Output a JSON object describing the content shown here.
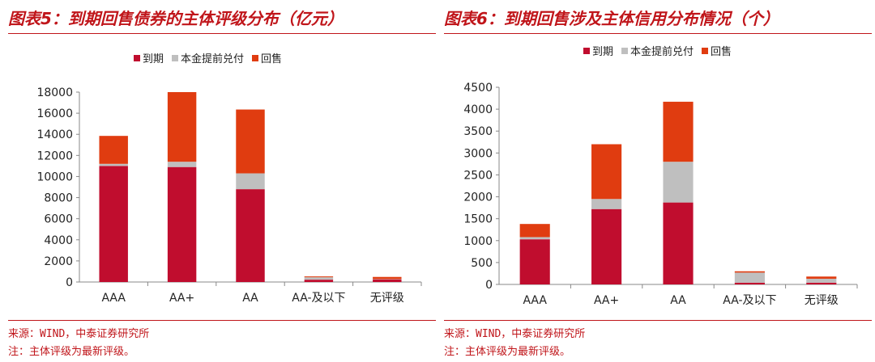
{
  "colors": {
    "accent": "#c0151a",
    "due": "#c00d2e",
    "principal": "#bfbfbf",
    "putback": "#e03c10"
  },
  "left": {
    "title": "图表5：到期回售债券的主体评级分布（亿元）",
    "source": "来源：WIND，中泰证券研究所",
    "note": "注：主体评级为最新评级。",
    "chart_data": {
      "type": "bar",
      "stacked": true,
      "categories": [
        "AAA",
        "AA+",
        "AA",
        "AA-及以下",
        "无评级"
      ],
      "series": [
        {
          "name": "到期",
          "values": [
            11000,
            10900,
            8800,
            220,
            250
          ]
        },
        {
          "name": "本金提前兑付",
          "values": [
            200,
            500,
            1500,
            230,
            30
          ]
        },
        {
          "name": "回售",
          "values": [
            2650,
            6600,
            6050,
            80,
            200
          ]
        }
      ],
      "ylim": [
        0,
        18000
      ],
      "yticks": [
        0,
        2000,
        4000,
        6000,
        8000,
        10000,
        12000,
        14000,
        16000,
        18000
      ],
      "legend": "top-center",
      "grid": false
    }
  },
  "right": {
    "title": "图表6：到期回售涉及主体信用分布情况（个）",
    "source": "来源：WIND，中泰证券研究所",
    "note": "注：主体评级为最新评级。",
    "chart_data": {
      "type": "bar",
      "stacked": true,
      "categories": [
        "AAA",
        "AA+",
        "AA",
        "AA-及以下",
        "无评级"
      ],
      "series": [
        {
          "name": "到期",
          "values": [
            1030,
            1720,
            1870,
            40,
            40
          ]
        },
        {
          "name": "本金提前兑付",
          "values": [
            50,
            230,
            930,
            230,
            90
          ]
        },
        {
          "name": "回售",
          "values": [
            300,
            1250,
            1370,
            30,
            50
          ]
        }
      ],
      "ylim": [
        0,
        4500
      ],
      "yticks": [
        0,
        500,
        1000,
        1500,
        2000,
        2500,
        3000,
        3500,
        4000,
        4500
      ],
      "legend": "top-center",
      "grid": false
    }
  }
}
